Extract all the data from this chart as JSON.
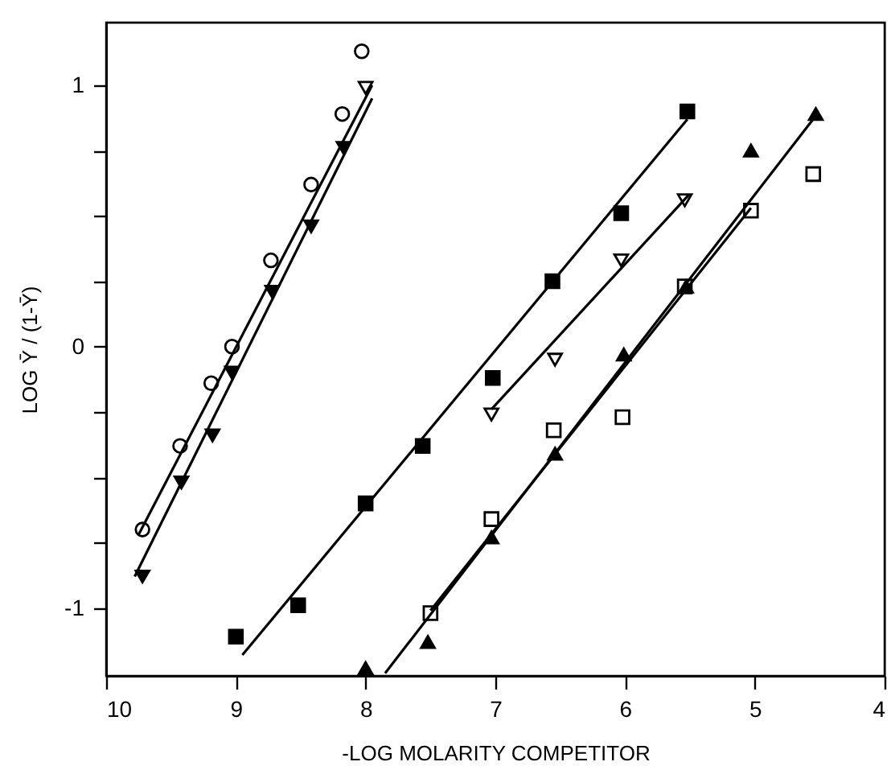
{
  "chart_data": {
    "type": "scatter",
    "xlabel": "-LOG MOLARITY COMPETITOR",
    "ylabel": "LOG Ȳ / (1-Ȳ)",
    "xlim": [
      10,
      4
    ],
    "xticks": [
      10,
      9,
      8,
      7,
      6,
      5,
      4
    ],
    "ylim": [
      -1.26,
      1.24
    ],
    "yticks": [
      -1,
      {
        "value": -0.75,
        "label": null
      },
      {
        "value": -0.5,
        "label": null
      },
      {
        "value": -0.25,
        "label": null
      },
      0,
      {
        "value": 0.25,
        "label": null
      },
      {
        "value": 0.5,
        "label": null
      },
      {
        "value": 0.75,
        "label": null
      },
      1
    ],
    "grid": false,
    "series": [
      {
        "marker": "circle",
        "color": "#ffffff",
        "x": [
          9.72,
          9.43,
          9.19,
          9.03,
          8.73,
          8.42,
          8.18,
          8.03
        ],
        "values": [
          -0.7,
          -0.38,
          -0.14,
          0.0,
          0.33,
          0.62,
          0.89,
          1.13
        ]
      },
      {
        "marker": "triangle-down",
        "color": "#000000",
        "x": [
          9.72,
          9.42,
          9.18,
          9.03,
          8.72,
          8.42,
          8.17
        ],
        "values": [
          -0.88,
          -0.52,
          -0.34,
          -0.1,
          0.21,
          0.46,
          0.76
        ]
      },
      {
        "marker": "square",
        "color": "#000000",
        "x": [
          9.0,
          8.52,
          8.0,
          7.56,
          7.02,
          6.56,
          6.03,
          5.52
        ],
        "values": [
          -1.11,
          -0.99,
          -0.6,
          -0.38,
          -0.12,
          0.25,
          0.51,
          0.9
        ]
      },
      {
        "marker": "triangle-down",
        "color": "#ffffff",
        "x": [
          8.0,
          7.03,
          6.54,
          6.03,
          5.54
        ],
        "values": [
          0.99,
          -0.26,
          -0.05,
          0.33,
          0.56
        ]
      },
      {
        "marker": "square",
        "color": "#ffffff",
        "x": [
          7.5,
          7.03,
          6.55,
          6.02,
          5.54,
          5.03,
          4.55
        ],
        "values": [
          -1.02,
          -0.66,
          -0.32,
          -0.27,
          0.23,
          0.52,
          0.66
        ]
      },
      {
        "marker": "triangle-up",
        "color": "#000000",
        "x": [
          8.0,
          7.52,
          7.03,
          6.54,
          6.01,
          5.53,
          5.03,
          4.53
        ],
        "values": [
          -1.23,
          -1.13,
          -0.73,
          -0.41,
          -0.03,
          0.23,
          0.75,
          0.89
        ]
      },
      {
        "type": "line",
        "color": "#000000",
        "x": [
          9.75,
          7.95
        ],
        "values": [
          -0.72,
          1.0
        ]
      },
      {
        "type": "line",
        "color": "#000000",
        "x": [
          9.78,
          7.95
        ],
        "values": [
          -0.88,
          0.95
        ]
      },
      {
        "type": "line",
        "color": "#000000",
        "x": [
          8.95,
          5.52
        ],
        "values": [
          -1.18,
          0.87
        ]
      },
      {
        "type": "line",
        "color": "#000000",
        "x": [
          7.03,
          5.51
        ],
        "values": [
          -0.24,
          0.58
        ]
      },
      {
        "type": "line",
        "color": "#000000",
        "x": [
          7.5,
          5.03
        ],
        "values": [
          -1.01,
          0.53
        ]
      },
      {
        "type": "line",
        "color": "#000000",
        "x": [
          7.85,
          4.52
        ],
        "values": [
          -1.25,
          0.89
        ]
      }
    ]
  }
}
